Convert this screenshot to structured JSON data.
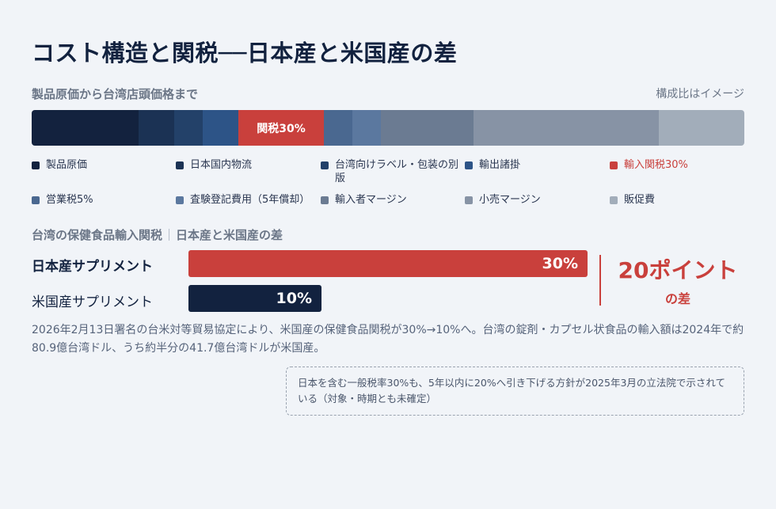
{
  "title": "コスト構造と関税──日本産と米国産の差",
  "stack_section": {
    "label": "製品原価から台湾店頭価格まで",
    "note": "構成比はイメージ"
  },
  "chart_data": [
    {
      "type": "bar",
      "subtype": "stacked-horizontal-composition",
      "title": "製品原価から台湾店頭価格まで",
      "note": "構成比はイメージ",
      "segments": [
        {
          "name": "製品原価",
          "color": "#13223e",
          "value": 15,
          "label": ""
        },
        {
          "name": "日本国内物流",
          "color": "#1b3254",
          "value": 5,
          "label": ""
        },
        {
          "name": "台湾向けラベル・包装の別版",
          "color": "#234169",
          "value": 4,
          "label": ""
        },
        {
          "name": "輸出諸掛",
          "color": "#2d5487",
          "value": 5,
          "label": ""
        },
        {
          "name": "輸入関税30%",
          "color": "#c9403c",
          "value": 12,
          "label": "関税30%",
          "highlight": true
        },
        {
          "name": "営業税5%",
          "color": "#4a6890",
          "value": 4,
          "label": ""
        },
        {
          "name": "査験登記費用（5年償却）",
          "color": "#5b789f",
          "value": 4,
          "label": ""
        },
        {
          "name": "輸入者マージン",
          "color": "#6b7b92",
          "value": 13,
          "label": ""
        },
        {
          "name": "小売マージン",
          "color": "#8793a5",
          "value": 26,
          "label": ""
        },
        {
          "name": "販促費",
          "color": "#a2adba",
          "value": 12,
          "label": ""
        }
      ],
      "legend": "bottom"
    },
    {
      "type": "bar",
      "subtype": "horizontal",
      "title": "台湾の保健食品輸入関税",
      "subtitle": "日本産と米国産の差",
      "categories": [
        "日本産サプリメント",
        "米国産サプリメント"
      ],
      "values": [
        30,
        10
      ],
      "value_labels": [
        "30%",
        "10%"
      ],
      "colors": [
        "#c9403c",
        "#12223f"
      ],
      "xlim": [
        0,
        60
      ],
      "annotation": {
        "big": "20ポイント",
        "small": "の差"
      }
    }
  ],
  "description": "2026年2月13日署名の台米対等貿易協定により、米国産の保健食品関税が30%→10%へ。台湾の錠剤・カプセル状食品の輸入額は2024年で約80.9億台湾ドル、うち約半分の41.7億台湾ドルが米国産。",
  "callout": "日本を含む一般税率30%も、5年以内に20%へ引き下げる方針が2025年3月の立法院で示されている（対象・時期とも未確定）"
}
